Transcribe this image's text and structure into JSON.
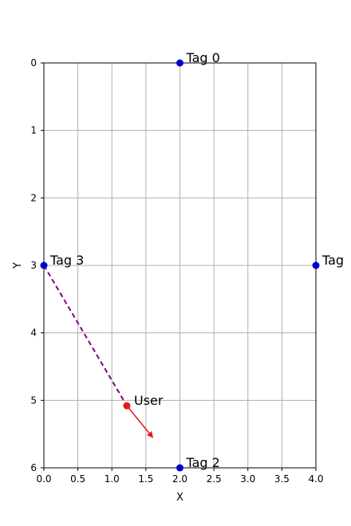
{
  "chart_data": {
    "type": "scatter",
    "title": "",
    "xlabel": "X",
    "ylabel": "Y",
    "xlim": [
      0,
      4
    ],
    "ylim": [
      6,
      0
    ],
    "y_inverted": true,
    "grid": true,
    "x_ticks": [
      0,
      0.5,
      1,
      1.5,
      2,
      2.5,
      3,
      3.5,
      4
    ],
    "x_tick_labels": [
      "0.0",
      "0.5",
      "1.0",
      "1.5",
      "2.0",
      "2.5",
      "3.0",
      "3.5",
      "4.0"
    ],
    "y_ticks": [
      0,
      1,
      2,
      3,
      4,
      5,
      6
    ],
    "y_tick_labels": [
      "0",
      "1",
      "2",
      "3",
      "4",
      "5",
      "6"
    ],
    "tags": [
      {
        "label": "Tag 0",
        "x": 2.0,
        "y": 0.0
      },
      {
        "label": "Tag",
        "x": 4.0,
        "y": 3.0
      },
      {
        "label": "Tag 2",
        "x": 2.0,
        "y": 6.0
      },
      {
        "label": "Tag 3",
        "x": 0.0,
        "y": 3.0
      }
    ],
    "user": {
      "label": "User",
      "x": 1.22,
      "y": 5.08
    },
    "heading_arrow": {
      "from": [
        1.22,
        5.08
      ],
      "to": [
        1.6,
        5.55
      ]
    },
    "connection_line": {
      "from_tag": "Tag 3",
      "to": "User",
      "style": "dashed"
    },
    "colors": {
      "tag": "#0000cc",
      "user": "#e31a1c",
      "arrow": "#e31a1c",
      "connection": "#800080",
      "grid": "#b0b0b0",
      "axis": "#000000"
    }
  }
}
